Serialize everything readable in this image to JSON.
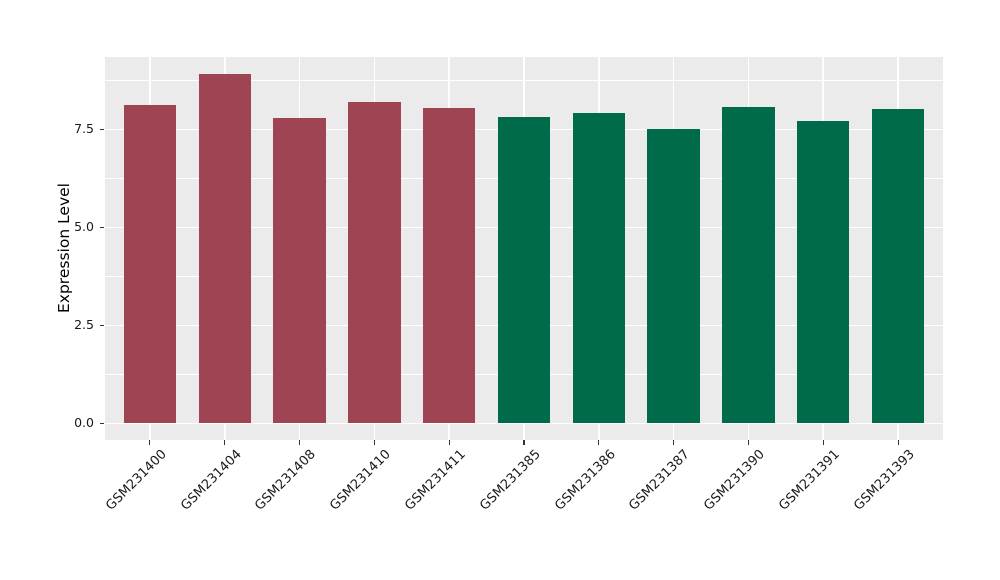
{
  "figure": {
    "background": "#ffffff",
    "panel_background": "#ebebeb",
    "gridline_color": "#ffffff",
    "tick_mark_color": "#333333",
    "axis_text_color": "#1a1a1a",
    "axis_title_color": "#000000"
  },
  "chart_data": {
    "type": "bar",
    "title": "",
    "xlabel": "",
    "ylabel": "Expression Level",
    "categories": [
      "GSM231400",
      "GSM231404",
      "GSM231408",
      "GSM231410",
      "GSM231411",
      "GSM231385",
      "GSM231386",
      "GSM231387",
      "GSM231390",
      "GSM231391",
      "GSM231393"
    ],
    "values": [
      8.12,
      8.91,
      7.78,
      8.2,
      8.04,
      7.81,
      7.91,
      7.5,
      8.07,
      7.71,
      8.02
    ],
    "bar_colors": [
      "#9e4452",
      "#9e4452",
      "#9e4452",
      "#9e4452",
      "#9e4452",
      "#006b4a",
      "#006b4a",
      "#006b4a",
      "#006b4a",
      "#006b4a",
      "#006b4a"
    ],
    "group_colors": {
      "left_group": "#9e4452",
      "right_group": "#006b4a"
    },
    "ylim": [
      0,
      9.34
    ],
    "yticks": [
      0,
      2.5,
      5,
      7.5
    ],
    "ytick_labels": [
      "0.0",
      "2.5",
      "5.0",
      "7.5"
    ],
    "yticks_minor": [
      1.25,
      3.75,
      6.25,
      8.75
    ],
    "grid": "horizontal major+minor, vertical major at category centers",
    "legend_position": "none",
    "x_tick_rotation_deg": 45,
    "bar_width_fraction": 0.7
  }
}
